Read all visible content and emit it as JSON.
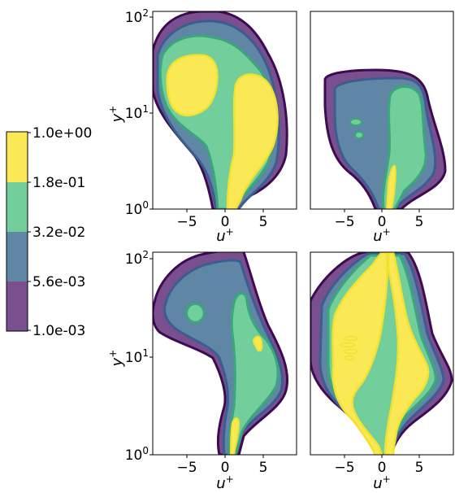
{
  "colors": {
    "level_0": "#7a4f8e",
    "level_1": "#5f86a4",
    "level_2": "#72cf9b",
    "level_3": "#fbe855",
    "edge_0": "#3d0b52",
    "edge_1": "#3b5d8f",
    "edge_2": "#3aa77c",
    "edge_3": "#f2e230",
    "axis": "#000000"
  },
  "colorbar": {
    "tick_labels": [
      "1.0e+00",
      "1.8e-01",
      "3.2e-02",
      "5.6e-03",
      "1.0e-03"
    ],
    "levels": [
      1.0,
      0.18,
      0.032,
      0.0056,
      0.001
    ]
  },
  "chart_data": [
    {
      "type": "contour",
      "position": "top-left",
      "xlim": [
        -8.5,
        8.5
      ],
      "ylim": [
        1,
        120
      ],
      "yscale": "log",
      "xticks": [
        -5,
        0,
        5
      ],
      "xtick_labels": [
        "−5",
        "0",
        "5"
      ],
      "yticks": [
        1,
        10,
        100
      ],
      "ytick_labels": [
        "10^0",
        "10^1",
        "10^2"
      ],
      "xlabel": "u^+",
      "ylabel": "y^+"
    },
    {
      "type": "contour",
      "position": "top-right",
      "xlim": [
        -8.5,
        8.5
      ],
      "ylim": [
        1,
        120
      ],
      "yscale": "log",
      "xticks": [
        -5,
        0,
        5
      ],
      "xtick_labels": [
        "−5",
        "0",
        "5"
      ],
      "xlabel": "u^+",
      "ylabel": ""
    },
    {
      "type": "contour",
      "position": "bottom-left",
      "xlim": [
        -8.5,
        8.5
      ],
      "ylim": [
        1,
        120
      ],
      "yscale": "log",
      "xticks": [
        -5,
        0,
        5
      ],
      "xtick_labels": [
        "−5",
        "0",
        "5"
      ],
      "yticks": [
        1,
        10,
        100
      ],
      "ytick_labels": [
        "10^0",
        "10^1",
        "10^2"
      ],
      "xlabel": "u^+",
      "ylabel": "y^+"
    },
    {
      "type": "contour",
      "position": "bottom-right",
      "xlim": [
        -8.5,
        8.5
      ],
      "ylim": [
        1,
        120
      ],
      "yscale": "log",
      "xticks": [
        -5,
        0,
        5
      ],
      "xtick_labels": [
        "−5",
        "0",
        "5"
      ],
      "xlabel": "u^+",
      "ylabel": ""
    }
  ]
}
